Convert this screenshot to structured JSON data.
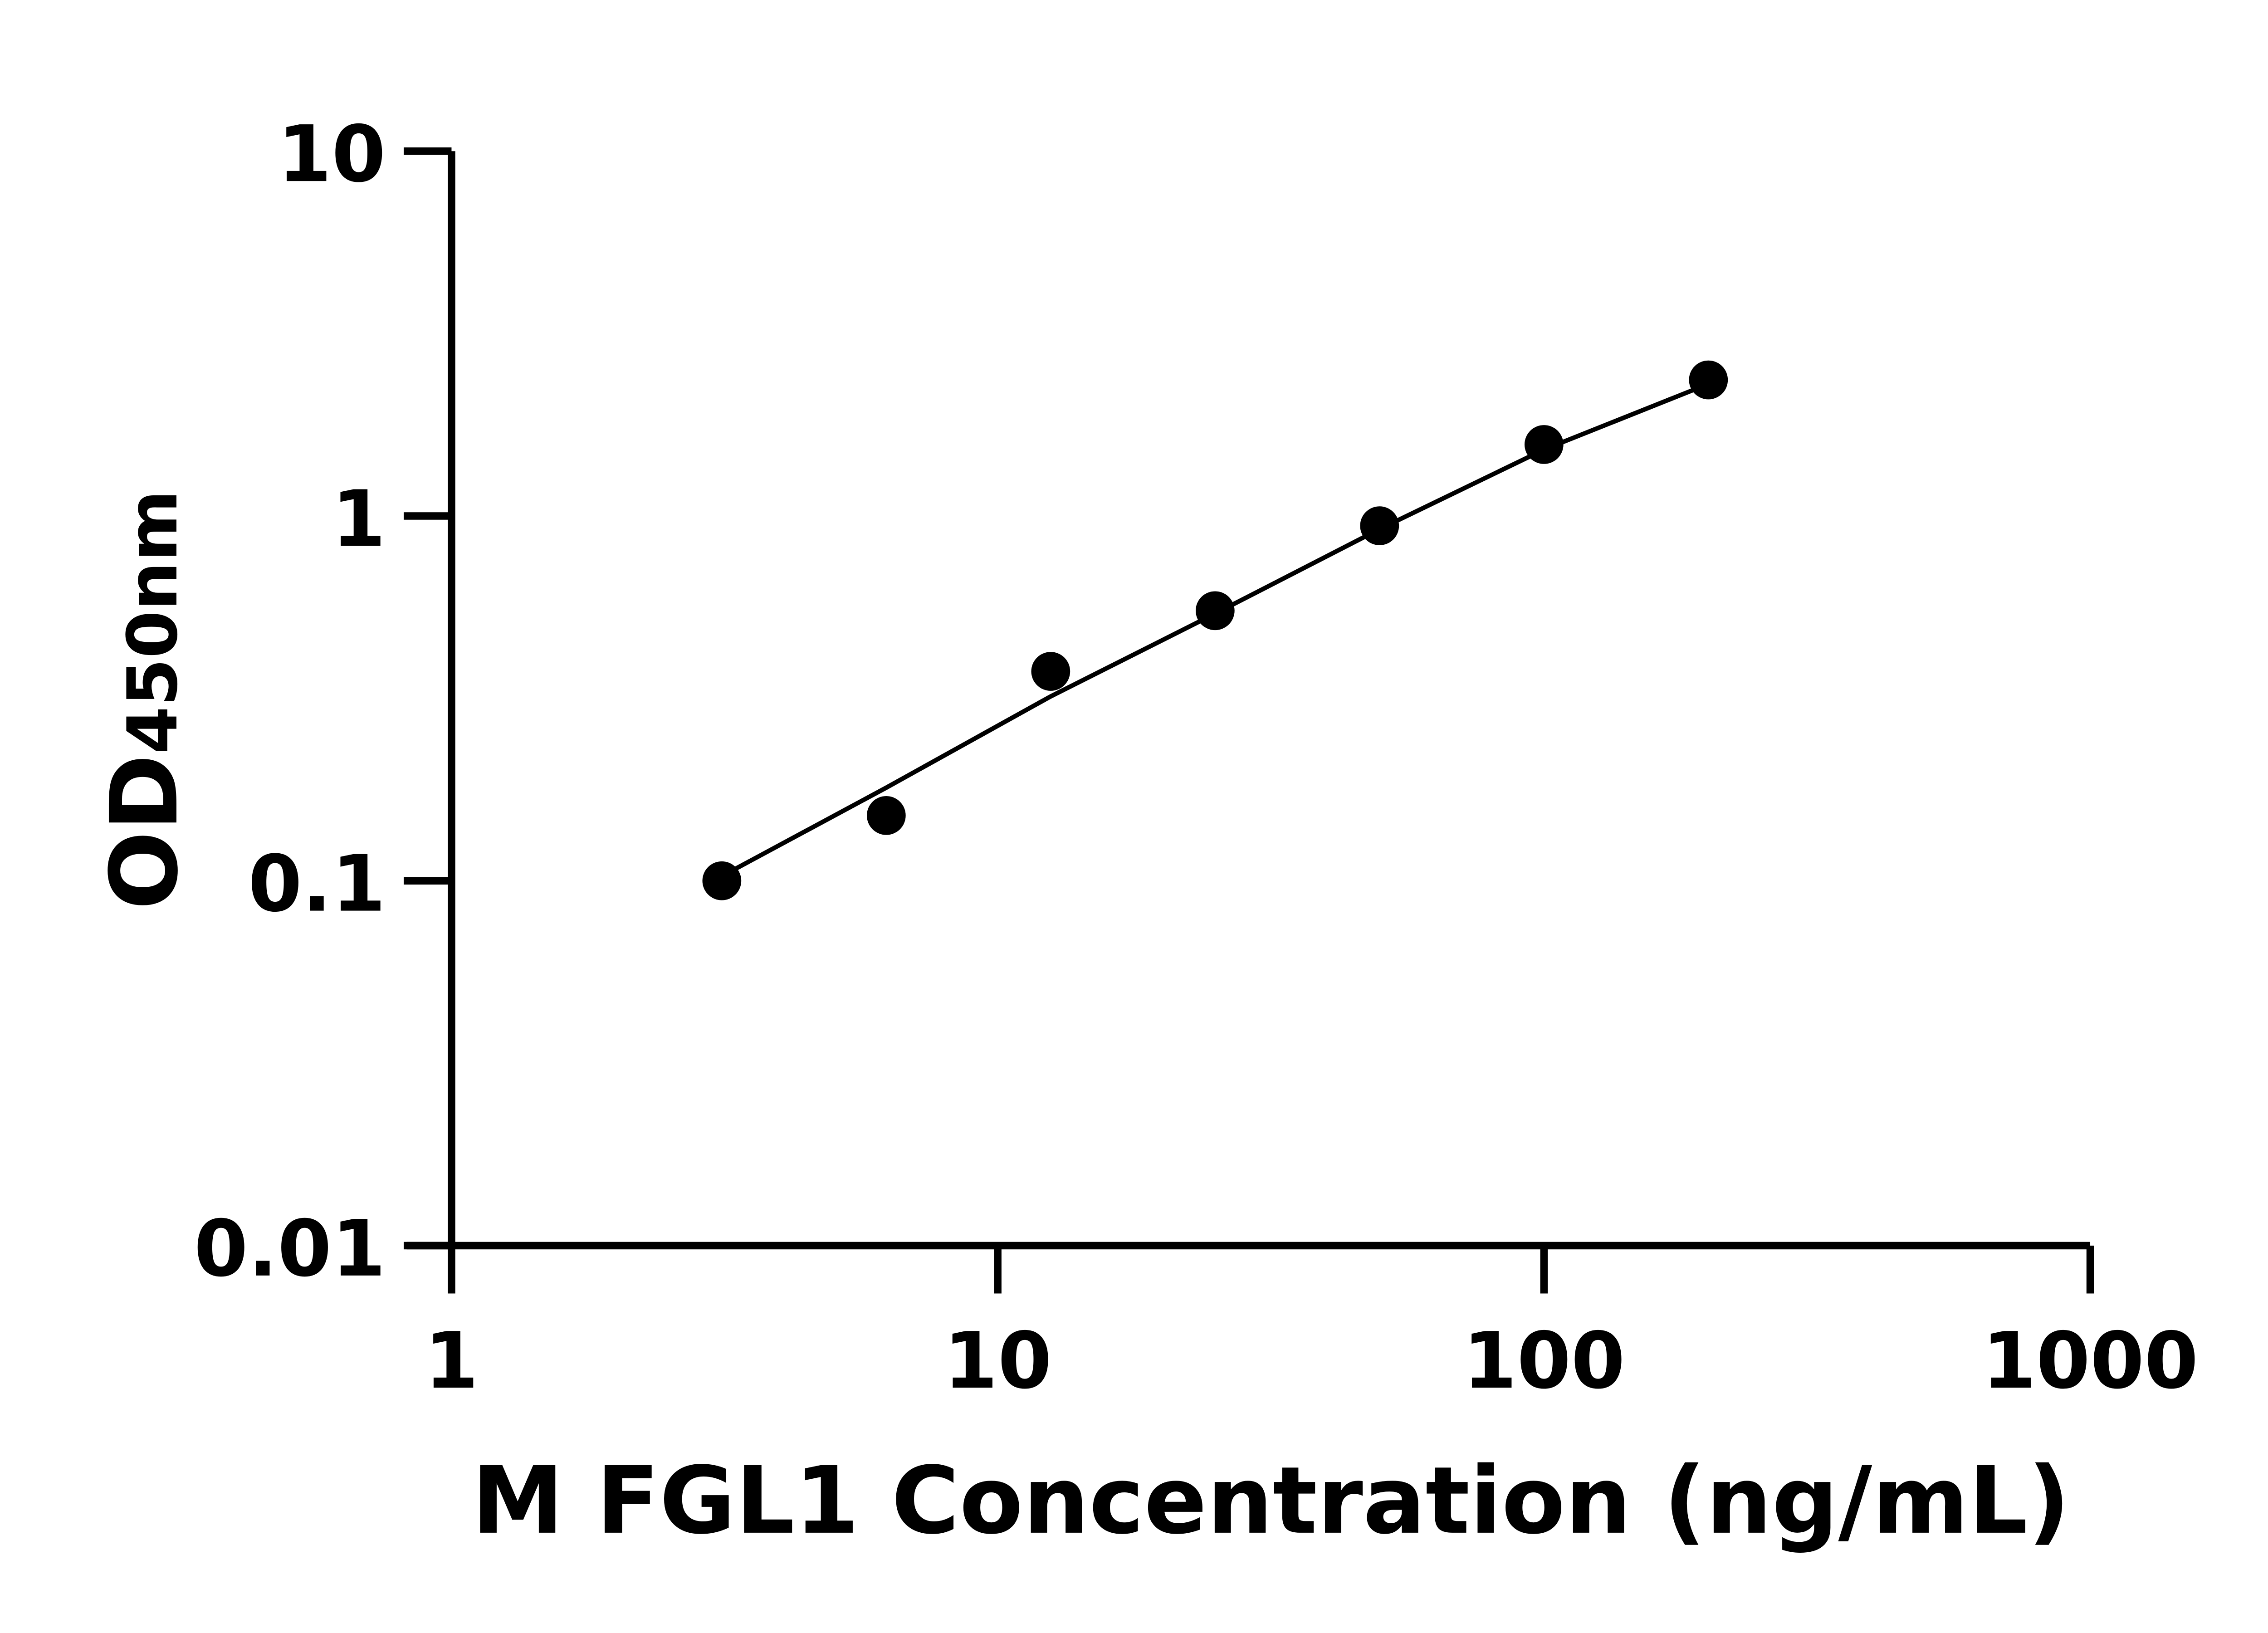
{
  "chart_data": {
    "type": "scatter",
    "title": "",
    "xlabel": "M FGL1 Concentration (ng/mL)",
    "ylabel_main": "OD",
    "ylabel_sub": "450nm",
    "x_scale": "log",
    "y_scale": "log",
    "xlim": [
      1,
      1000
    ],
    "ylim": [
      0.01,
      10
    ],
    "x_ticks": [
      1,
      10,
      100,
      1000
    ],
    "x_tick_labels": [
      "1",
      "10",
      "100",
      "1000"
    ],
    "y_ticks": [
      0.01,
      0.1,
      1,
      10
    ],
    "y_tick_labels": [
      "0.01",
      "0.1",
      "1",
      "10"
    ],
    "grid": false,
    "legend": "none",
    "colors": {
      "points": "#000000",
      "fit_line": "#000000",
      "axes": "#000000"
    },
    "points": [
      {
        "x": 3.125,
        "y": 0.1
      },
      {
        "x": 6.25,
        "y": 0.151
      },
      {
        "x": 12.5,
        "y": 0.375
      },
      {
        "x": 25,
        "y": 0.55
      },
      {
        "x": 50,
        "y": 0.94
      },
      {
        "x": 100,
        "y": 1.57
      },
      {
        "x": 200,
        "y": 2.36
      }
    ],
    "fit_curve": [
      {
        "x": 3.125,
        "y": 0.103
      },
      {
        "x": 6.25,
        "y": 0.18
      },
      {
        "x": 12.5,
        "y": 0.32
      },
      {
        "x": 25,
        "y": 0.54
      },
      {
        "x": 50,
        "y": 0.92
      },
      {
        "x": 100,
        "y": 1.52
      },
      {
        "x": 200,
        "y": 2.3
      }
    ]
  }
}
